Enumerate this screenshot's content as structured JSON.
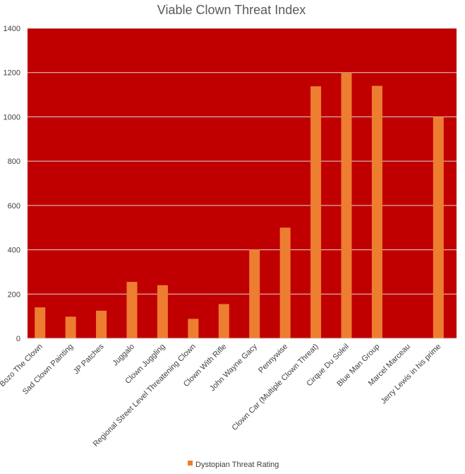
{
  "chart_data": {
    "type": "bar",
    "title": "Viable Clown Threat Index",
    "categories": [
      "Bozo The Clown",
      "Sad Clown Painting",
      "JP Patches",
      "Juggalo",
      "Clown Juggling",
      "Regional Street Level Threatening Clown",
      "Clown With Rifle",
      "John Wayne Gacy",
      "Pennywise",
      "Clown Car (Multiple Clown Threat)",
      "Cirque Du Soleil",
      "Blue Man Group",
      "Marcel Marceau",
      "Jerry Lewis in his prime"
    ],
    "series": [
      {
        "name": "Dystopian Threat Rating",
        "values": [
          140,
          98,
          125,
          255,
          240,
          88,
          155,
          400,
          500,
          1138,
          1200,
          1140,
          0,
          1000
        ]
      }
    ],
    "ylim": [
      0,
      1400
    ],
    "yticks": [
      0,
      200,
      400,
      600,
      800,
      1000,
      1200,
      1400
    ],
    "grid": true,
    "legend_position": "bottom",
    "colors": {
      "plot_background": "#C00000",
      "bar": "#ED7D31",
      "gridline": "#D9D9D9",
      "axis_line": "#D9D9D9"
    }
  }
}
